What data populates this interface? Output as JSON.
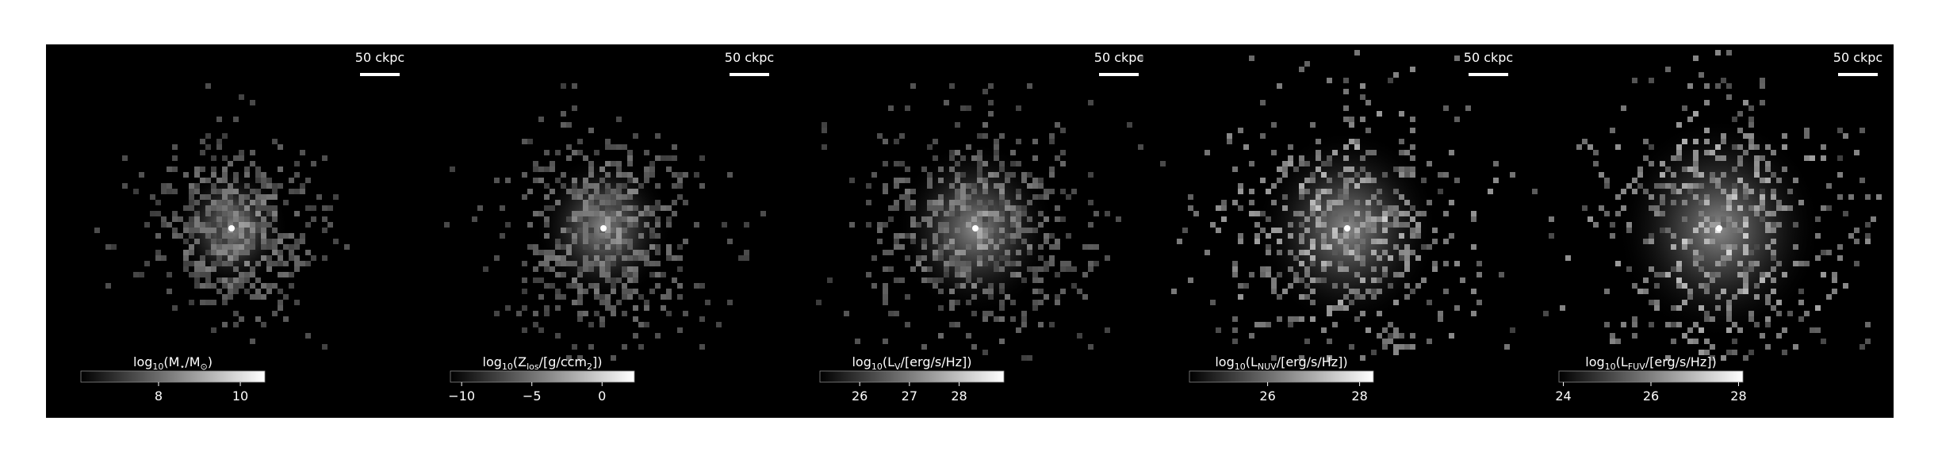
{
  "panels": [
    {
      "scale_label": "50 ckpc",
      "colorbar": {
        "label": [
          "log",
          "10",
          "(M",
          "⋆",
          "/M",
          "⊙",
          ")"
        ],
        "lim": [
          6.1,
          10.6
        ],
        "ticks": [
          8,
          10
        ]
      }
    },
    {
      "scale_label": "50 ckpc",
      "colorbar": {
        "label": [
          "log",
          "10",
          "(Z",
          "los",
          "/[g/ccm",
          "2",
          "])"
        ],
        "lim": [
          -10.8,
          2.3
        ],
        "ticks": [
          {
            "value": -10,
            "label": "−10"
          },
          {
            "value": -5,
            "label": "−5"
          },
          0
        ]
      }
    },
    {
      "scale_label": "50 ckpc",
      "colorbar": {
        "label": [
          "log",
          "10",
          "(L",
          "V",
          "/[erg/s/Hz])"
        ],
        "lim": [
          25.2,
          28.9
        ],
        "ticks": [
          26,
          27,
          28
        ]
      }
    },
    {
      "scale_label": "50 ckpc",
      "colorbar": {
        "label": [
          "log",
          "10",
          "(L",
          "NUV",
          "/[erg/s/Hz])"
        ],
        "lim": [
          24.3,
          28.3
        ],
        "ticks": [
          26,
          28
        ]
      }
    },
    {
      "scale_label": "50 ckpc",
      "colorbar": {
        "label": [
          "log",
          "10",
          "(L",
          "FUV",
          "/[erg/s/Hz])"
        ],
        "lim": [
          23.9,
          28.1
        ],
        "ticks": [
          24,
          26,
          28
        ]
      }
    }
  ]
}
